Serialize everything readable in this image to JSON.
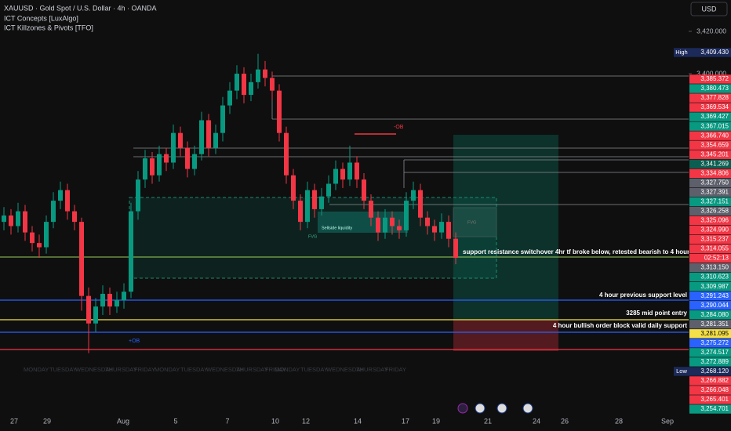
{
  "header": {
    "symbol": "XAUUSD · Gold Spot / U.S. Dollar · 4h · OANDA",
    "indicators": [
      "ICT Concepts [LuxAlgo]",
      "ICT Killzones & Pivots [TFO]"
    ],
    "currency": "USD"
  },
  "chart": {
    "type": "candlestick",
    "up_color": "#089981",
    "down_color": "#f23645",
    "candles": [
      [
        3330,
        3337,
        3326,
        3333
      ],
      [
        3333,
        3336,
        3324,
        3328
      ],
      [
        3328,
        3339,
        3325,
        3335
      ],
      [
        3335,
        3338,
        3321,
        3325
      ],
      [
        3325,
        3328,
        3316,
        3320
      ],
      [
        3320,
        3324,
        3313,
        3318
      ],
      [
        3318,
        3333,
        3315,
        3330
      ],
      [
        3330,
        3344,
        3327,
        3340
      ],
      [
        3340,
        3349,
        3336,
        3345
      ],
      [
        3345,
        3348,
        3331,
        3335
      ],
      [
        3335,
        3338,
        3326,
        3330
      ],
      [
        3330,
        3332,
        3288,
        3295
      ],
      [
        3295,
        3299,
        3268,
        3282
      ],
      [
        3282,
        3294,
        3278,
        3290
      ],
      [
        3290,
        3300,
        3286,
        3296
      ],
      [
        3296,
        3299,
        3286,
        3290
      ],
      [
        3290,
        3297,
        3287,
        3293
      ],
      [
        3293,
        3301,
        3289,
        3297
      ],
      [
        3297,
        3339,
        3294,
        3335
      ],
      [
        3335,
        3354,
        3331,
        3350
      ],
      [
        3350,
        3364,
        3346,
        3360
      ],
      [
        3360,
        3363,
        3348,
        3352
      ],
      [
        3352,
        3366,
        3349,
        3362
      ],
      [
        3362,
        3365,
        3354,
        3358
      ],
      [
        3358,
        3376,
        3355,
        3372
      ],
      [
        3372,
        3375,
        3361,
        3365
      ],
      [
        3365,
        3368,
        3351,
        3355
      ],
      [
        3355,
        3366,
        3352,
        3362
      ],
      [
        3362,
        3382,
        3359,
        3378
      ],
      [
        3378,
        3381,
        3361,
        3365
      ],
      [
        3365,
        3376,
        3362,
        3372
      ],
      [
        3372,
        3389,
        3368,
        3385
      ],
      [
        3385,
        3396,
        3381,
        3392
      ],
      [
        3392,
        3404,
        3388,
        3400
      ],
      [
        3400,
        3403,
        3386,
        3390
      ],
      [
        3390,
        3400,
        3387,
        3396
      ],
      [
        3396,
        3409.43,
        3393,
        3402
      ],
      [
        3402,
        3406,
        3394,
        3398
      ],
      [
        3398,
        3401,
        3388,
        3392
      ],
      [
        3392,
        3395,
        3368,
        3372
      ],
      [
        3372,
        3375,
        3348,
        3352
      ],
      [
        3352,
        3355,
        3336,
        3340
      ],
      [
        3340,
        3343,
        3326,
        3330
      ],
      [
        3330,
        3349,
        3327,
        3345
      ],
      [
        3345,
        3348,
        3332,
        3336
      ],
      [
        3336,
        3346,
        3333,
        3342
      ],
      [
        3342,
        3352,
        3339,
        3348
      ],
      [
        3348,
        3359,
        3345,
        3355
      ],
      [
        3355,
        3358,
        3346,
        3350
      ],
      [
        3350,
        3366,
        3347,
        3358
      ],
      [
        3358,
        3361,
        3346,
        3350
      ],
      [
        3350,
        3353,
        3336,
        3340
      ],
      [
        3340,
        3343,
        3328,
        3332
      ],
      [
        3332,
        3335,
        3321,
        3325
      ],
      [
        3325,
        3336,
        3322,
        3332
      ],
      [
        3332,
        3335,
        3324,
        3328
      ],
      [
        3328,
        3331,
        3322,
        3326
      ],
      [
        3326,
        3344,
        3323,
        3340
      ],
      [
        3340,
        3349,
        3336,
        3345
      ],
      [
        3345,
        3348,
        3328,
        3332
      ],
      [
        3332,
        3335,
        3324,
        3328
      ],
      [
        3328,
        3331,
        3321,
        3325
      ],
      [
        3325,
        3334,
        3322,
        3330
      ],
      [
        3330,
        3333,
        3318,
        3322
      ],
      [
        3322,
        3325,
        3310,
        3313
      ]
    ],
    "ylim": [
      3248.222,
      3434.815
    ],
    "axis_ticks": [
      {
        "value": 3420,
        "label": "3,420.000"
      },
      {
        "value": 3400,
        "label": "3,400.000"
      }
    ],
    "dates": [
      "27",
      "29",
      "Aug",
      "5",
      "7",
      "10",
      "12",
      "14",
      "17",
      "19",
      "21",
      "24",
      "26",
      "28",
      "Sep"
    ],
    "weekdays": [
      "MONDAY",
      "TUESDAY",
      "WEDNESDAY",
      "THURSDAY",
      "FRIDAY"
    ],
    "annotations": {
      "switchover": "support resistance switchover 4hr tf broke below, retested bearish to 4 hour OB",
      "prev_support": "4 hour previous support level",
      "entry": "3285 mid point entry",
      "bullish_ob": "4 hour bullish order block valid daily support",
      "bear_ob": "-OB",
      "bull_ob": "+OB",
      "liquidity": "Sellside liquidity",
      "fvg1": "FVG",
      "fvg2": "FVG"
    },
    "price_labels": [
      {
        "tag": "High",
        "text": "3,409.430",
        "color": "#1c2a5a"
      },
      {
        "text": "3,385.372",
        "color": "#f23645"
      },
      {
        "text": "3,380.473",
        "color": "#089981"
      },
      {
        "text": "3,377.828",
        "color": "#f23645"
      },
      {
        "text": "3,369.534",
        "color": "#f23645"
      },
      {
        "text": "3,369.427",
        "color": "#089981"
      },
      {
        "text": "3,367.015",
        "color": "#089981"
      },
      {
        "text": "3,366.740",
        "color": "#f23645"
      },
      {
        "text": "3,354.659",
        "color": "#f23645"
      },
      {
        "text": "3,345.201",
        "color": "#f23645"
      },
      {
        "text": "3,341.269",
        "color": "#0b5e50"
      },
      {
        "text": "3,334.806",
        "color": "#f23645"
      },
      {
        "text": "3,327.750",
        "color": "#5d606b"
      },
      {
        "text": "3,327.391",
        "color": "#5d606b"
      },
      {
        "text": "3,327.151",
        "color": "#089981"
      },
      {
        "text": "3,326.258",
        "color": "#5d606b"
      },
      {
        "text": "3,325.096",
        "color": "#f23645"
      },
      {
        "text": "3,324.990",
        "color": "#f23645"
      },
      {
        "text": "3,315.237",
        "color": "#f23645"
      },
      {
        "text": "3,314.055",
        "color": "#f23645"
      },
      {
        "text": "02:52:13",
        "color": "#f23645"
      },
      {
        "text": "3,313.150",
        "color": "#5d606b"
      },
      {
        "text": "3,310.623",
        "color": "#089981"
      },
      {
        "text": "3,309.987",
        "color": "#089981"
      },
      {
        "text": "3,291.243",
        "color": "#2962ff"
      },
      {
        "text": "3,290.044",
        "color": "#2962ff"
      },
      {
        "text": "3,284.080",
        "color": "#089981"
      },
      {
        "text": "3,281.351",
        "color": "#5d606b"
      },
      {
        "text": "3,281.095",
        "color": "#f5e04a"
      },
      {
        "text": "3,275.272",
        "color": "#2962ff"
      },
      {
        "text": "3,274.517",
        "color": "#089981"
      },
      {
        "text": "3,272.889",
        "color": "#089981"
      },
      {
        "tag": "Low",
        "text": "3,268.120",
        "color": "#1c2a5a"
      },
      {
        "text": "3,266.882",
        "color": "#f23645"
      },
      {
        "text": "3,266.048",
        "color": "#f23645"
      },
      {
        "text": "3,265.401",
        "color": "#f23645"
      },
      {
        "text": "3,254.701",
        "color": "#089981"
      }
    ]
  }
}
